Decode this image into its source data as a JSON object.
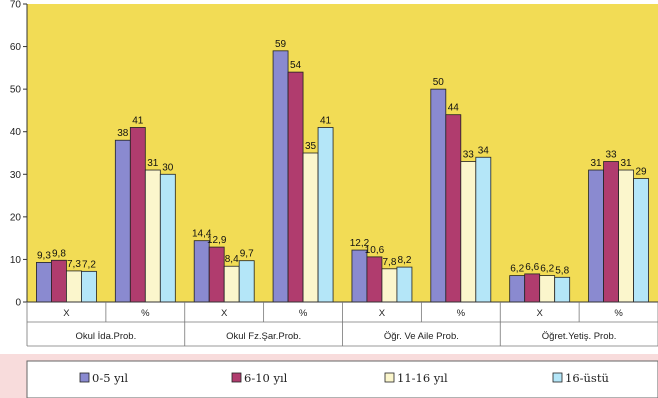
{
  "chart_data": {
    "type": "bar",
    "ylim": [
      0,
      70
    ],
    "yticks": [
      0,
      10,
      20,
      30,
      40,
      50,
      60,
      70
    ],
    "grid": false,
    "legend_position": "bottom",
    "colors": {
      "plot_background": "#f2dc55",
      "legend_band": "#f8dcdc",
      "series": [
        "#8a8ad0",
        "#b03c6e",
        "#fbf6cc",
        "#b4e6f8"
      ]
    },
    "groups": [
      "Okul İda.Prob.",
      "Okul Fz.Şar.Prob.",
      "Öğr. Ve Aile Prob.",
      "Öğret.Yetiş. Prob."
    ],
    "subcategories": [
      "X",
      "%"
    ],
    "series": [
      {
        "name": "0-5 yıl",
        "values": [
          9.3,
          38,
          14.4,
          59,
          12.2,
          50,
          6.2,
          31
        ],
        "labels": [
          "9,3",
          "38",
          "14,4",
          "59",
          "12,2",
          "50",
          "6,2",
          "31"
        ]
      },
      {
        "name": "6-10 yıl",
        "values": [
          9.8,
          41,
          12.9,
          54,
          10.6,
          44,
          6.6,
          33
        ],
        "labels": [
          "9,8",
          "41",
          "12,9",
          "54",
          "10,6",
          "44",
          "6,6",
          "33"
        ]
      },
      {
        "name": "11-16 yıl",
        "values": [
          7.3,
          31,
          8.4,
          35,
          7.8,
          33,
          6.2,
          31
        ],
        "labels": [
          "7,3",
          "31",
          "8,4",
          "35",
          "7,8",
          "33",
          "6,2",
          "31"
        ]
      },
      {
        "name": "16-üstü",
        "values": [
          7.2,
          30,
          9.7,
          41,
          8.2,
          34,
          5.8,
          29
        ],
        "labels": [
          "7,2",
          "30",
          "9,7",
          "41",
          "8,2",
          "34",
          "5,8",
          "29"
        ]
      }
    ]
  }
}
